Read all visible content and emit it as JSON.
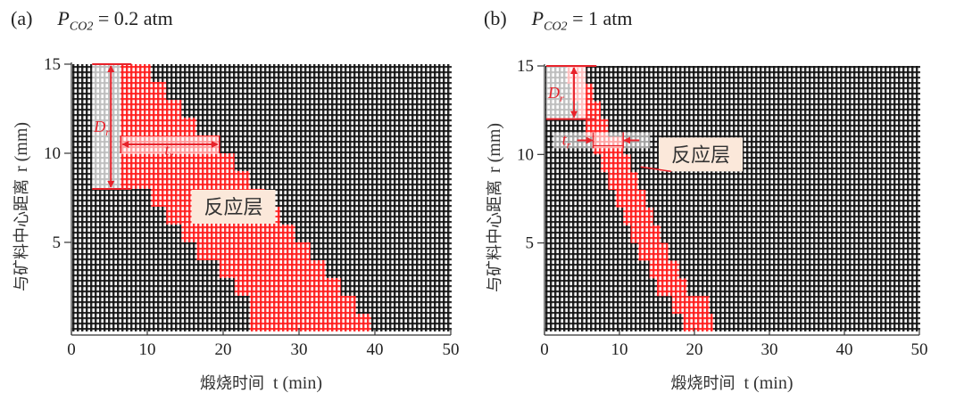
{
  "chart_data": [
    {
      "type": "heatmap",
      "panel_label": "(a)",
      "title_var": "P",
      "title_sub": "CO2",
      "title_rest": "= 0.2 atm",
      "xlabel_cn": "煅烧时间",
      "xlabel_en": "t (min)",
      "ylabel_cn": "与矿料中心距离",
      "ylabel_en": "r (mm)",
      "xlim": [
        0,
        50
      ],
      "ylim": [
        0,
        15
      ],
      "xticks": [
        0,
        10,
        20,
        30,
        40,
        50
      ],
      "yticks": [
        5,
        10,
        15
      ],
      "ytick_labels": [
        "5",
        "10",
        "15"
      ],
      "xtick_labels": [
        "0",
        "10",
        "20",
        "30",
        "40",
        "50"
      ],
      "cell_states": {
        "unreacted": "black-dotted-grid",
        "reaction_layer": "red-dotted-grid"
      },
      "colors": {
        "grid": "#111111",
        "reaction": "#ff1a1a",
        "highlight": "#e8222a",
        "annot_bg": "#fbe8da"
      },
      "reaction_layer": [
        {
          "r": [
            14,
            15
          ],
          "t": [
            6.5,
            10.5
          ]
        },
        {
          "r": [
            13,
            14
          ],
          "t": [
            6.5,
            12.5
          ]
        },
        {
          "r": [
            12,
            13
          ],
          "t": [
            6.5,
            14.5
          ]
        },
        {
          "r": [
            11,
            12
          ],
          "t": [
            6.5,
            16.5
          ]
        },
        {
          "r": [
            10,
            11
          ],
          "t": [
            6.5,
            19.5
          ]
        },
        {
          "r": [
            9,
            10
          ],
          "t": [
            6.5,
            21.5
          ]
        },
        {
          "r": [
            8,
            9
          ],
          "t": [
            6.5,
            23.5
          ]
        },
        {
          "r": [
            7,
            8
          ],
          "t": [
            10.5,
            25.5
          ]
        },
        {
          "r": [
            6,
            7
          ],
          "t": [
            12.5,
            27.5
          ]
        },
        {
          "r": [
            5,
            6
          ],
          "t": [
            14.5,
            29.5
          ]
        },
        {
          "r": [
            4,
            5
          ],
          "t": [
            16.5,
            31.5
          ]
        },
        {
          "r": [
            3,
            4
          ],
          "t": [
            19.5,
            33.5
          ]
        },
        {
          "r": [
            2,
            3
          ],
          "t": [
            21.5,
            35.5
          ]
        },
        {
          "r": [
            1,
            2
          ],
          "t": [
            23.5,
            37.5
          ]
        },
        {
          "r": [
            0,
            1
          ],
          "t": [
            23.5,
            39.5
          ]
        }
      ],
      "annotations": {
        "layer_label": "反应层",
        "layer_label_pos": {
          "t": 17,
          "r": 7
        },
        "Dr_label": "D",
        "Dr_sub": "r",
        "Dr_span": {
          "t_band": [
            2.5,
            6.5
          ],
          "r": [
            8,
            15
          ]
        },
        "tr_label": "t",
        "tr_sub": "r",
        "tr_span": {
          "t": [
            6.5,
            19.5
          ],
          "r": 10.5
        }
      }
    },
    {
      "type": "heatmap",
      "panel_label": "(b)",
      "title_var": "P",
      "title_sub": "CO2",
      "title_rest": "= 1 atm",
      "xlabel_cn": "煅烧时间",
      "xlabel_en": "t (min)",
      "ylabel_cn": "与矿料中心距离",
      "ylabel_en": "r (mm)",
      "xlim": [
        0,
        50
      ],
      "ylim": [
        0,
        15
      ],
      "xticks": [
        0,
        10,
        20,
        30,
        40,
        50
      ],
      "yticks": [
        5,
        10,
        15
      ],
      "ytick_labels": [
        "5",
        "10",
        "15"
      ],
      "xtick_labels": [
        "0",
        "10",
        "20",
        "30",
        "40",
        "50"
      ],
      "cell_states": {
        "unreacted": "black-dotted-grid",
        "reaction_layer": "red-dotted-grid"
      },
      "colors": {
        "grid": "#111111",
        "reaction": "#ff1a1a",
        "highlight": "#e8222a",
        "annot_bg": "#fbe8da"
      },
      "reaction_layer": [
        {
          "r": [
            14,
            15
          ],
          "t": [
            3.0,
            5.5
          ]
        },
        {
          "r": [
            13,
            14
          ],
          "t": [
            3.5,
            6.5
          ]
        },
        {
          "r": [
            12,
            13
          ],
          "t": [
            4.5,
            7.5
          ]
        },
        {
          "r": [
            11,
            12
          ],
          "t": [
            5.5,
            8.5
          ]
        },
        {
          "r": [
            10,
            11
          ],
          "t": [
            6.5,
            10.5
          ]
        },
        {
          "r": [
            9,
            10
          ],
          "t": [
            7.5,
            11.5
          ]
        },
        {
          "r": [
            8,
            9
          ],
          "t": [
            8.5,
            12.5
          ]
        },
        {
          "r": [
            7,
            8
          ],
          "t": [
            9.5,
            13.5
          ]
        },
        {
          "r": [
            6,
            7
          ],
          "t": [
            10.5,
            14.5
          ]
        },
        {
          "r": [
            5,
            6
          ],
          "t": [
            11.5,
            15.5
          ]
        },
        {
          "r": [
            4,
            5
          ],
          "t": [
            12.5,
            16.5
          ]
        },
        {
          "r": [
            3,
            4
          ],
          "t": [
            14.0,
            18.0
          ]
        },
        {
          "r": [
            2,
            3
          ],
          "t": [
            15.0,
            19.0
          ]
        },
        {
          "r": [
            1,
            2
          ],
          "t": [
            17.0,
            22.0
          ]
        },
        {
          "r": [
            0,
            1
          ],
          "t": [
            18.5,
            22.5
          ]
        }
      ],
      "annotations": {
        "layer_label": "反应层",
        "layer_label_pos": {
          "t": 15,
          "r": 10
        },
        "Dr_label": "D",
        "Dr_sub": "r",
        "Dr_span": {
          "t_band": [
            0,
            5.5
          ],
          "r": [
            12,
            15
          ]
        },
        "tr_label": "t",
        "tr_sub": "r",
        "tr_span": {
          "t": [
            6.5,
            10.5
          ],
          "r": 10.8
        }
      }
    }
  ]
}
